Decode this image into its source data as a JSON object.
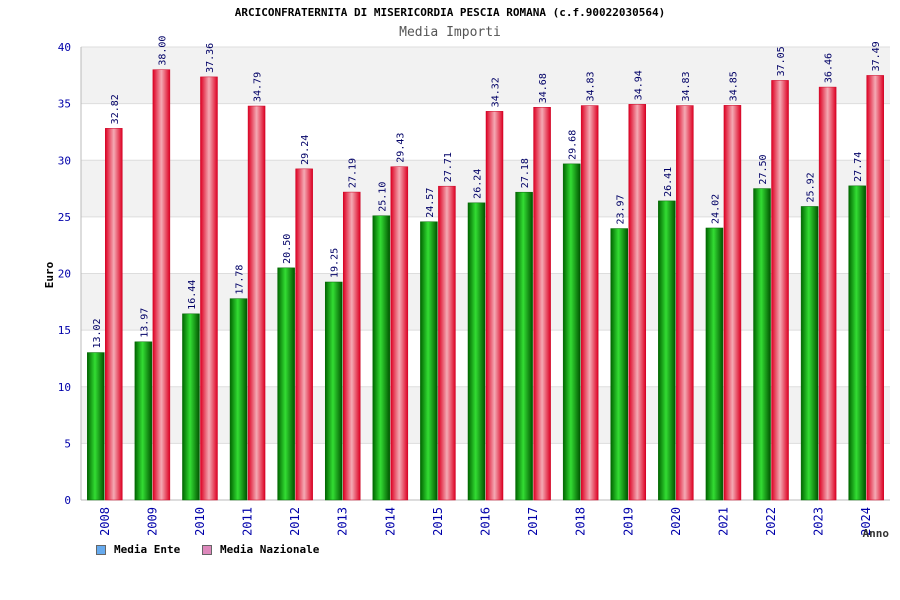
{
  "title": "ARCICONFRATERNITA DI MISERICORDIA PESCIA ROMANA (c.f.90022030564)",
  "subtitle": "Media Importi",
  "chart_data": {
    "type": "bar",
    "title": "ARCICONFRATERNITA DI MISERICORDIA PESCIA ROMANA (c.f.90022030564)",
    "subtitle": "Media Importi",
    "xlabel": "Anno",
    "ylabel": "Euro",
    "ylim": [
      0,
      40
    ],
    "yticks": [
      0,
      5,
      10,
      15,
      20,
      25,
      30,
      35,
      40
    ],
    "grid": true,
    "legend_position": "bottom-left",
    "categories": [
      "2008",
      "2009",
      "2010",
      "2011",
      "2012",
      "2013",
      "2014",
      "2015",
      "2016",
      "2017",
      "2018",
      "2019",
      "2020",
      "2021",
      "2022",
      "2023",
      "2024"
    ],
    "series": [
      {
        "name": "Media Ente",
        "color": "#00aa00",
        "legend_color": "#66aaee",
        "values": [
          13.02,
          13.97,
          16.44,
          17.78,
          20.5,
          19.25,
          25.1,
          24.57,
          26.24,
          27.18,
          29.68,
          23.97,
          26.41,
          24.02,
          27.5,
          25.92,
          27.74
        ],
        "labels": [
          "13.02",
          "13.97",
          "16.44",
          "17.78",
          "20.50",
          "19.25",
          "25.10",
          "24.57",
          "26.24",
          "27.18",
          "29.68",
          "23.97",
          "26.41",
          "24.02",
          "27.50",
          "25.92",
          "27.74"
        ]
      },
      {
        "name": "Media Nazionale",
        "color": "#ee1133",
        "legend_color": "#dd88bb",
        "values": [
          32.82,
          38.0,
          37.36,
          34.79,
          29.24,
          27.19,
          29.43,
          27.71,
          34.32,
          34.68,
          34.83,
          34.94,
          34.83,
          34.85,
          37.05,
          36.46,
          37.49
        ],
        "labels": [
          "32.82",
          "38.00",
          "37.36",
          "34.79",
          "29.24",
          "27.19",
          "29.43",
          "27.71",
          "34.32",
          "34.68",
          "34.83",
          "34.94",
          "34.83",
          "34.85",
          "37.05",
          "36.46",
          "37.49"
        ]
      }
    ]
  }
}
